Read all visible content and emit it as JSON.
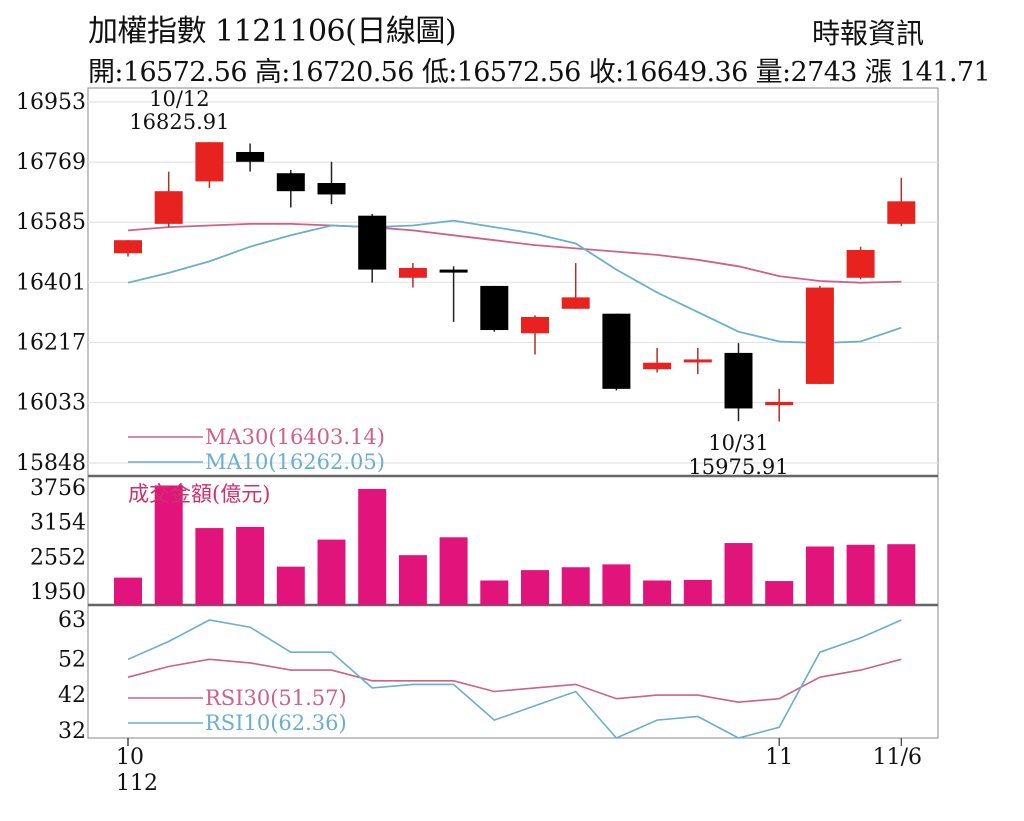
{
  "header": {
    "title": "加權指數 1121106(日線圖)",
    "source": "時報資訊",
    "quote": "開:16572.56 高:16720.56 低:16572.56 收:16649.36 量:2743 漲 141.71"
  },
  "chart_data": [
    {
      "type": "candlestick",
      "panel": "price",
      "ylim": [
        15848,
        16953
      ],
      "yticks": [
        "16953",
        "16769",
        "16585",
        "16401",
        "16217",
        "16033",
        "15848"
      ],
      "grid": true,
      "candles": [
        {
          "open": 16490,
          "high": 16530,
          "low": 16480,
          "close": 16530
        },
        {
          "open": 16580,
          "high": 16740,
          "low": 16570,
          "close": 16680
        },
        {
          "open": 16710,
          "high": 16830,
          "low": 16690,
          "close": 16830
        },
        {
          "open": 16800,
          "high": 16826,
          "low": 16740,
          "close": 16770
        },
        {
          "open": 16735,
          "high": 16745,
          "low": 16630,
          "close": 16680
        },
        {
          "open": 16705,
          "high": 16770,
          "low": 16640,
          "close": 16670
        },
        {
          "open": 16605,
          "high": 16610,
          "low": 16400,
          "close": 16440
        },
        {
          "open": 16415,
          "high": 16460,
          "low": 16385,
          "close": 16445
        },
        {
          "open": 16440,
          "high": 16450,
          "low": 16280,
          "close": 16435
        },
        {
          "open": 16390,
          "high": 16390,
          "low": 16250,
          "close": 16255
        },
        {
          "open": 16245,
          "high": 16300,
          "low": 16180,
          "close": 16295
        },
        {
          "open": 16320,
          "high": 16460,
          "low": 16320,
          "close": 16355
        },
        {
          "open": 16305,
          "high": 16305,
          "low": 16070,
          "close": 16075
        },
        {
          "open": 16135,
          "high": 16200,
          "low": 16125,
          "close": 16155
        },
        {
          "open": 16160,
          "high": 16200,
          "low": 16120,
          "close": 16165
        },
        {
          "open": 16185,
          "high": 16215,
          "low": 15976,
          "close": 16015
        },
        {
          "open": 16025,
          "high": 16075,
          "low": 15975,
          "close": 16035
        },
        {
          "open": 16090,
          "high": 16390,
          "low": 16090,
          "close": 16385
        },
        {
          "open": 16415,
          "high": 16510,
          "low": 16410,
          "close": 16500
        },
        {
          "open": 16580,
          "high": 16721,
          "low": 16573,
          "close": 16649
        }
      ],
      "ma30": [
        16560,
        16570,
        16575,
        16580,
        16580,
        16575,
        16570,
        16560,
        16545,
        16530,
        16515,
        16505,
        16495,
        16485,
        16470,
        16450,
        16420,
        16405,
        16400,
        16403
      ],
      "ma10": [
        16400,
        16430,
        16465,
        16510,
        16545,
        16575,
        16570,
        16575,
        16590,
        16570,
        16550,
        16520,
        16440,
        16370,
        16310,
        16250,
        16220,
        16215,
        16220,
        16262
      ],
      "legend": [
        "MA30(16403.14)",
        "MA10(16262.05)"
      ],
      "colors": {
        "ma30": "#d0608a",
        "ma10": "#6aaed0",
        "up": "#e8231f",
        "down": "#000000"
      },
      "annotations": [
        {
          "text": "10/12",
          "value_text": "16825.91",
          "index": 2
        },
        {
          "text": "10/31",
          "value_text": "15975.91",
          "index": 15
        }
      ]
    },
    {
      "type": "bar",
      "panel": "volume",
      "title": "成交金額(億元)",
      "ylim": [
        1950,
        3756
      ],
      "yticks": [
        "3756",
        "3154",
        "2552",
        "1950"
      ],
      "values": [
        2200,
        3800,
        3060,
        3080,
        2390,
        2860,
        3740,
        2590,
        2900,
        2150,
        2330,
        2380,
        2430,
        2150,
        2160,
        2800,
        2140,
        2740,
        2770,
        2780
      ],
      "color": "#e0147a"
    },
    {
      "type": "line",
      "panel": "rsi",
      "ylim": [
        30,
        63
      ],
      "yticks": [
        "63",
        "52",
        "42",
        "32"
      ],
      "series": [
        {
          "name": "RSI30(51.57)",
          "color": "#d0608a",
          "values": [
            47,
            50,
            52,
            51,
            49,
            49,
            46,
            46,
            46,
            43,
            44,
            45,
            41,
            42,
            42,
            40,
            41,
            47,
            49,
            52
          ]
        },
        {
          "name": "RSI10(62.36)",
          "color": "#6aaed0",
          "values": [
            52,
            57,
            63,
            61,
            54,
            54,
            44,
            45,
            45,
            35,
            39,
            43,
            30,
            35,
            36,
            29,
            33,
            54,
            58,
            63
          ]
        }
      ]
    }
  ],
  "x_axis": {
    "labels": [
      {
        "text": "10",
        "index": 0
      },
      {
        "text": "112",
        "index": 0
      },
      {
        "text": "11",
        "index": 16
      },
      {
        "text": "11/6",
        "index": 19
      }
    ]
  }
}
